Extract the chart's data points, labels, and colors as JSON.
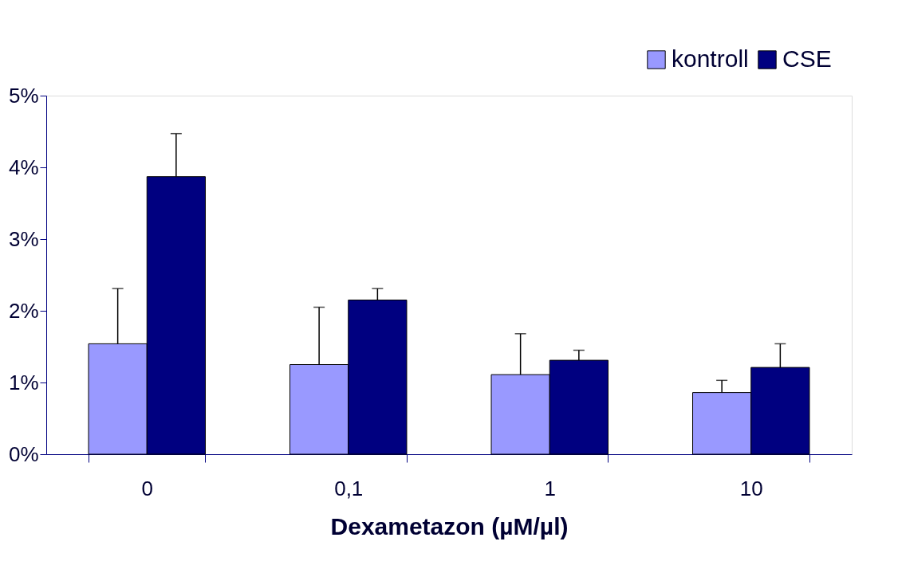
{
  "chart_data": {
    "type": "bar",
    "xlabel": "Dexametazon (µM/µl)",
    "categories": [
      "0",
      "0,1",
      "1",
      "10"
    ],
    "series": [
      {
        "name": "kontroll",
        "color": "#9999ff",
        "values": [
          1.54,
          1.25,
          1.11,
          0.86
        ],
        "errors": [
          [
            1.54,
            2.31
          ],
          [
            1.25,
            2.05
          ],
          [
            1.11,
            1.68
          ],
          [
            0.86,
            1.03
          ]
        ]
      },
      {
        "name": "CSE",
        "color": "#000080",
        "values": [
          3.87,
          2.15,
          1.31,
          1.21
        ],
        "errors": [
          [
            3.87,
            4.47
          ],
          [
            2.15,
            2.31
          ],
          [
            1.31,
            1.45
          ],
          [
            1.21,
            1.54
          ]
        ]
      }
    ],
    "ylim": [
      0,
      5
    ],
    "yticks": [
      {
        "value": 0,
        "label": "0%"
      },
      {
        "value": 1,
        "label": "1%"
      },
      {
        "value": 2,
        "label": "2%"
      },
      {
        "value": 3,
        "label": "3%"
      },
      {
        "value": 4,
        "label": "4%"
      },
      {
        "value": 5,
        "label": "5%"
      }
    ],
    "grid": false,
    "legend": "top right"
  }
}
